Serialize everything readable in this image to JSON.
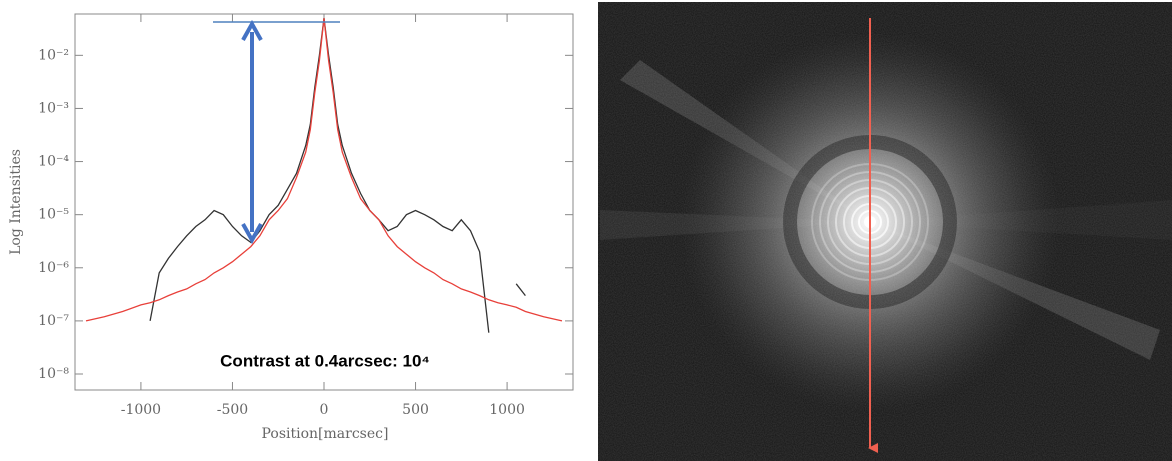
{
  "chart_data": {
    "type": "line",
    "xlabel": "Position[marcsec]",
    "ylabel": "Log Intensities",
    "annotation": "Contrast at 0.4arcsec: 10⁴",
    "ylog": true,
    "x": [
      -1300,
      -1200,
      -1100,
      -1000,
      -950,
      -900,
      -850,
      -800,
      -750,
      -700,
      -650,
      -600,
      -550,
      -500,
      -450,
      -400,
      -350,
      -300,
      -250,
      -200,
      -150,
      -100,
      -75,
      -50,
      -25,
      0,
      25,
      50,
      75,
      100,
      150,
      200,
      250,
      300,
      350,
      400,
      450,
      500,
      550,
      600,
      650,
      700,
      750,
      800,
      850,
      900,
      950,
      1000,
      1050,
      1100,
      1200,
      1300
    ],
    "series": [
      {
        "color": "#333333",
        "values": [
          null,
          null,
          null,
          null,
          1e-07,
          8e-07,
          1.5e-06,
          2.5e-06,
          4e-06,
          6e-06,
          8e-06,
          1.2e-05,
          1e-05,
          6e-06,
          4e-06,
          3e-06,
          5e-06,
          1e-05,
          1.5e-05,
          3e-05,
          6e-05,
          0.0002,
          0.0005,
          0.0025,
          0.01,
          0.05,
          0.01,
          0.0025,
          0.0005,
          0.0002,
          6e-05,
          2.5e-05,
          1.2e-05,
          8e-06,
          5e-06,
          6e-06,
          1e-05,
          1.2e-05,
          1e-05,
          8e-06,
          6e-06,
          5e-06,
          8e-06,
          5e-06,
          2e-06,
          6e-08,
          null,
          null,
          5e-07,
          3e-07,
          null,
          null
        ]
      },
      {
        "color": "#e8403a",
        "values": [
          1e-07,
          1.2e-07,
          1.5e-07,
          2e-07,
          2.2e-07,
          2.5e-07,
          3e-07,
          3.5e-07,
          4e-07,
          5e-07,
          6e-07,
          8e-07,
          1e-06,
          1.3e-06,
          1.8e-06,
          2.5e-06,
          4e-06,
          8e-06,
          1.2e-05,
          2e-05,
          5e-05,
          0.00015,
          0.0004,
          0.002,
          0.008,
          0.05,
          0.008,
          0.002,
          0.0004,
          0.00015,
          5e-05,
          2e-05,
          1.2e-05,
          8e-06,
          4e-06,
          2.5e-06,
          1.8e-06,
          1.3e-06,
          1e-06,
          8e-07,
          6e-07,
          5e-07,
          4e-07,
          3.5e-07,
          3e-07,
          2.5e-07,
          2.2e-07,
          2e-07,
          1.8e-07,
          1.5e-07,
          1.2e-07,
          1e-07
        ]
      }
    ],
    "xlim": [
      -1360,
      1360
    ],
    "xticks": [
      -1000,
      -500,
      0,
      500,
      1000
    ],
    "ylim": [
      5e-09,
      0.06
    ],
    "yticks": [
      {
        "value": 1e-08,
        "label": "10⁻⁸"
      },
      {
        "value": 1e-07,
        "label": "10⁻⁷"
      },
      {
        "value": 1e-06,
        "label": "10⁻⁶"
      },
      {
        "value": 1e-05,
        "label": "10⁻⁵"
      },
      {
        "value": 0.0001,
        "label": "10⁻⁴"
      },
      {
        "value": 0.001,
        "label": "10⁻³"
      },
      {
        "value": 0.01,
        "label": "10⁻²"
      }
    ]
  }
}
